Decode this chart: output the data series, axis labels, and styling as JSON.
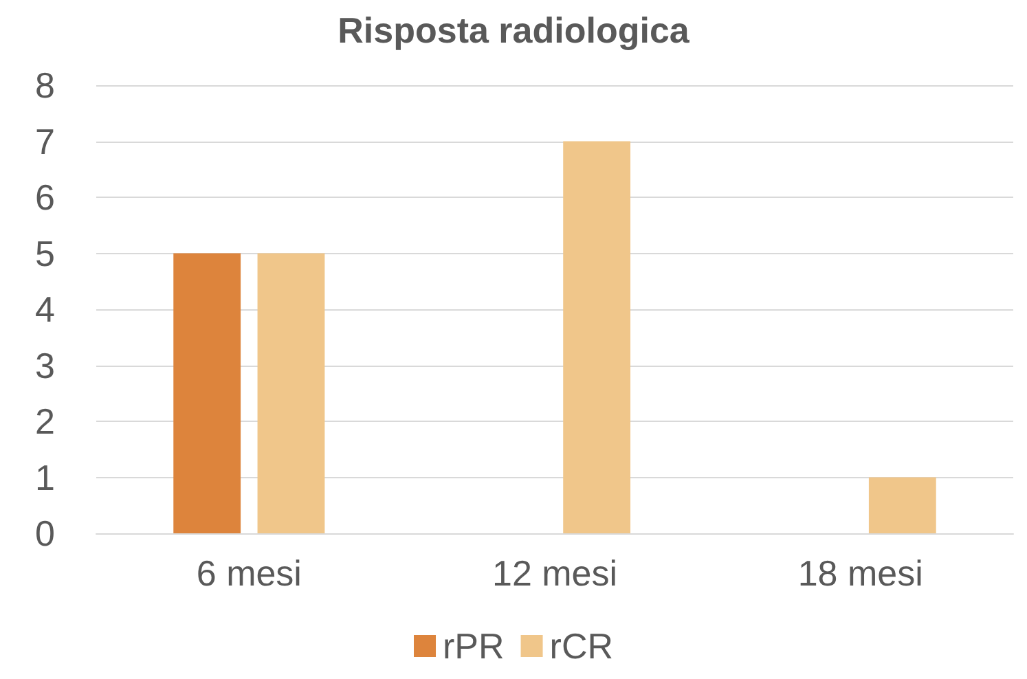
{
  "chart_data": {
    "type": "bar",
    "title": "Risposta radiologica",
    "categories": [
      "6 mesi",
      "12 mesi",
      "18 mesi"
    ],
    "series": [
      {
        "name": "rPR",
        "color": "#dd843c",
        "values": [
          5,
          0,
          0
        ]
      },
      {
        "name": "rCR",
        "color": "#f0c68a",
        "values": [
          5,
          7,
          1
        ]
      }
    ],
    "ylim": [
      0,
      8
    ],
    "yticks": [
      0,
      1,
      2,
      3,
      4,
      5,
      6,
      7,
      8
    ],
    "grid": "y",
    "legend": "bottom"
  }
}
